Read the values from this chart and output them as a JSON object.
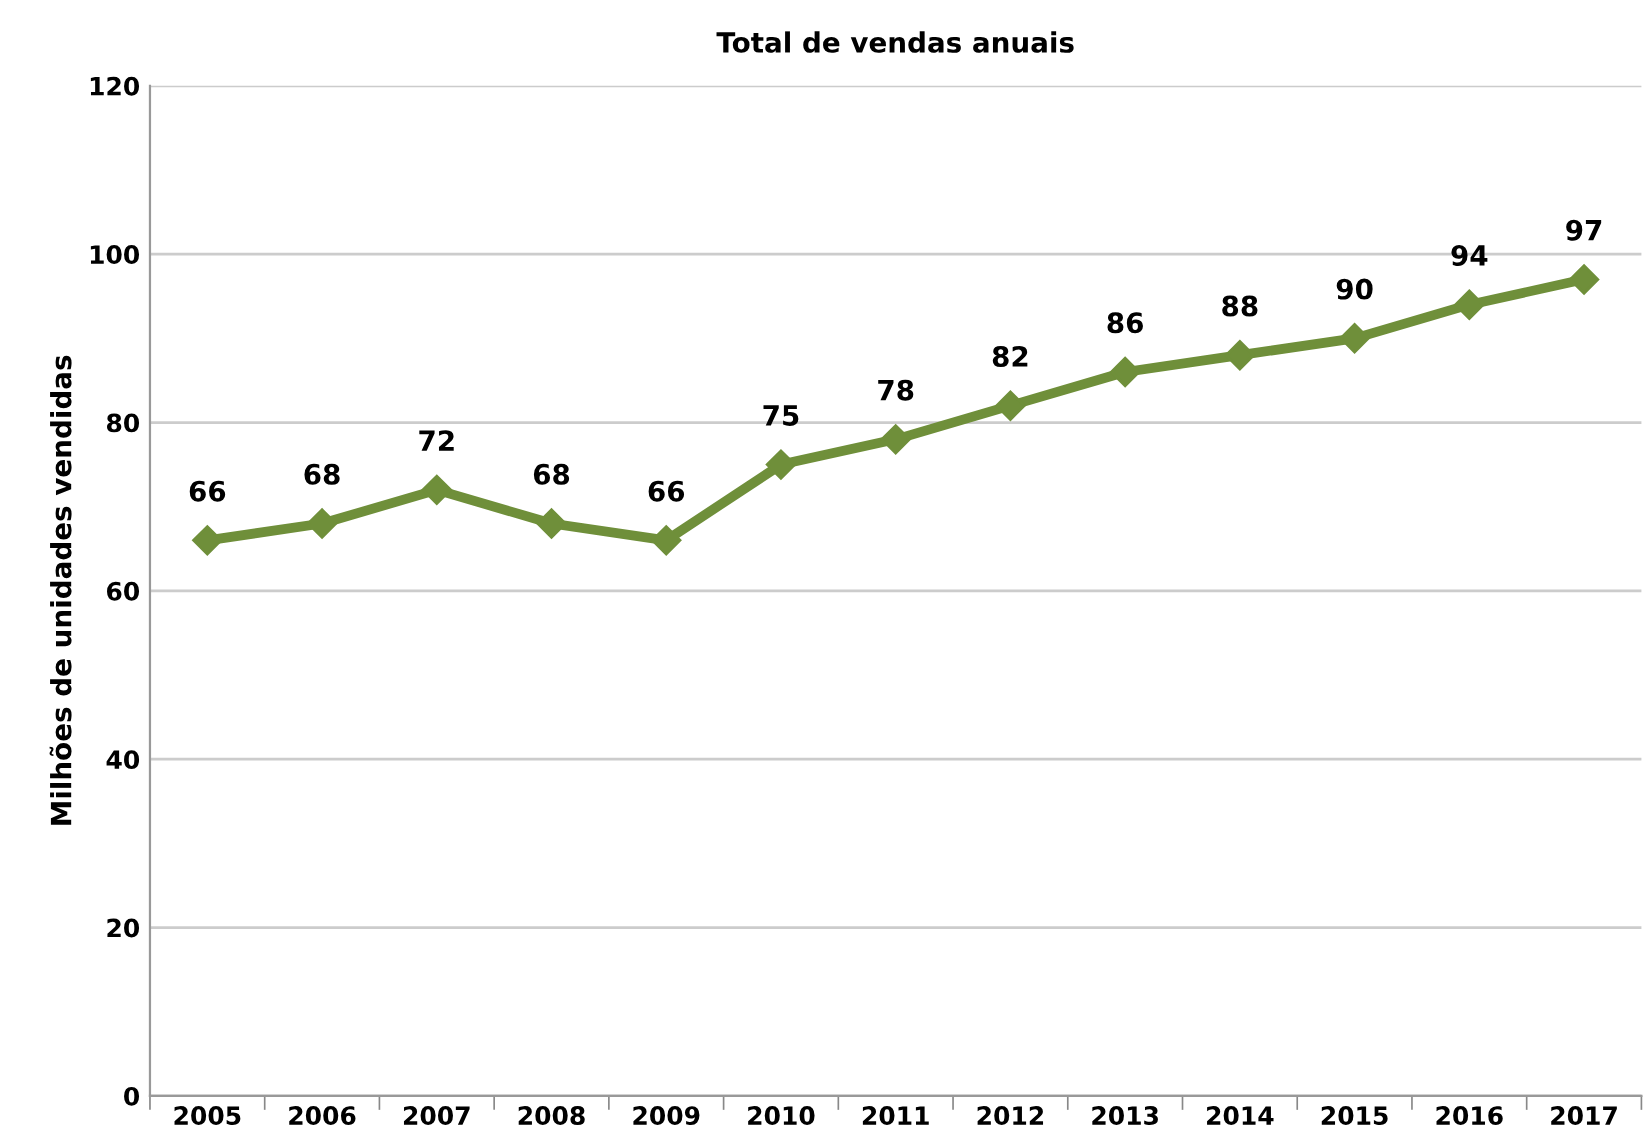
{
  "chart_data": {
    "type": "line",
    "title": "Total de vendas anuais",
    "ylabel": "Milhões de unidades vendidas",
    "categories": [
      "2005",
      "2006",
      "2007",
      "2008",
      "2009",
      "2010",
      "2011",
      "2012",
      "2013",
      "2014",
      "2015",
      "2016",
      "2017"
    ],
    "series": [
      {
        "color": "#6f8f3a",
        "values": [
          66,
          68,
          72,
          68,
          66,
          75,
          78,
          82,
          86,
          88,
          90,
          94,
          97
        ]
      }
    ],
    "ylim": [
      0,
      120
    ],
    "yticks": [
      0,
      20,
      40,
      60,
      80,
      100,
      120
    ],
    "grid": "y",
    "marker": "diamond",
    "line_style": "solid",
    "data_labels": true,
    "legend": false
  }
}
